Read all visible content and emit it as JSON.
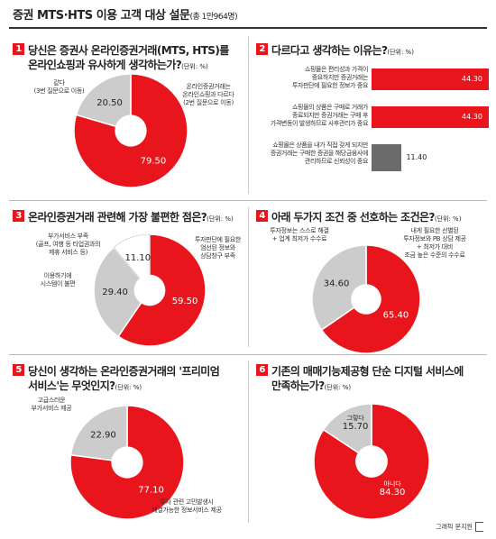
{
  "header": {
    "title": "증권 MTS·HTS 이용 고객 대상 설문",
    "subtitle": "(총 1만964명)"
  },
  "unit": "(단위: %)",
  "credit": "그래픽 문지원",
  "colors": {
    "red": "#e8161c",
    "gray": "#cccccc",
    "dark_gray": "#6b6b6b"
  },
  "chart_data": [
    {
      "id": "q1",
      "type": "pie",
      "number": "1",
      "title_line1": "당신은 증권사 온라인증권거래(MTS, HTS)를",
      "title_line2": "온라인쇼핑과 유사하게 생각하는가?",
      "slices": [
        {
          "label": "온라인증권거래는\n온라인쇼핑과 다르다\n(2번 질문으로 이동)",
          "value": 79.5,
          "display": "79.50",
          "color": "#e8161c"
        },
        {
          "label": "같다\n(3번 질문으로 이동)",
          "value": 20.5,
          "display": "20.50",
          "color": "#cccccc"
        }
      ]
    },
    {
      "id": "q2",
      "type": "bar",
      "number": "2",
      "title_line1": "다르다고 생각하는 이유는?",
      "title_line2": "",
      "bars": [
        {
          "label": "쇼핑몰은 편리성과 가격이\n중요하지만 증권거래는\n투자판단에 필요한 정보가 중요",
          "value": 44.3,
          "display": "44.30",
          "color": "#e8161c"
        },
        {
          "label": "쇼핑몰의 상품은 구매로 거래가\n종료되지만 증권거래는 구매 후\n가격변동이 발생하므로 사후관리가 중요",
          "value": 44.3,
          "display": "44.30",
          "color": "#e8161c"
        },
        {
          "label": "쇼핑몰은 상품을 내가 직접 갖게 되지만\n증권거래는 구매한 증권을 해당금융사에\n관리하므로 신뢰성이 중요",
          "value": 11.4,
          "display": "11.40",
          "color": "#6b6b6b"
        }
      ]
    },
    {
      "id": "q3",
      "type": "pie",
      "number": "3",
      "title_line1": "온라인증권거래 관련해 가장 불편한 점은?",
      "title_line2": "",
      "slices": [
        {
          "label": "투자판단에 필요한\n엄선된 정보와\n상담창구 부족",
          "value": 59.5,
          "display": "59.50",
          "color": "#e8161c"
        },
        {
          "label": "이용하기에\n시스템이 불편",
          "value": 29.4,
          "display": "29.40",
          "color": "#cccccc"
        },
        {
          "label": "부가서비스 부족\n(골프, 여행 등 타업권과의\n제휴 서비스 등)",
          "value": 11.1,
          "display": "11.10",
          "color": "#ffffff"
        }
      ]
    },
    {
      "id": "q4",
      "type": "pie",
      "number": "4",
      "title_line1": "아래 두가지 조건 중 선호하는 조건은?",
      "title_line2": "",
      "slices": [
        {
          "label": "내게 필요한 선별된\n투자정보와 PB 상담 제공\n+ 최저가 대비\n조금 높은 수준의 수수료",
          "value": 65.4,
          "display": "65.40",
          "color": "#e8161c"
        },
        {
          "label": "투자정보는 스스로 해결\n+ 업계 최저가 수수료",
          "value": 34.6,
          "display": "34.60",
          "color": "#cccccc"
        }
      ]
    },
    {
      "id": "q5",
      "type": "pie",
      "number": "5",
      "title_line1": "당신이 생각하는 온라인증권거래의 '프리미엄",
      "title_line2": "서비스'는 무엇인지?",
      "slices": [
        {
          "label": "투자 관련 고민발생시\n해결가능한 정보서비스 제공",
          "value": 77.1,
          "display": "77.10",
          "color": "#e8161c"
        },
        {
          "label": "고급스러운\n부가서비스 제공",
          "value": 22.9,
          "display": "22.90",
          "color": "#cccccc"
        }
      ]
    },
    {
      "id": "q6",
      "type": "pie",
      "number": "6",
      "title_line1": "기존의 매매기능제공형 단순 디지털 서비스에",
      "title_line2": "만족하는가?",
      "slices": [
        {
          "label": "아니다",
          "value": 84.3,
          "display": "84.30",
          "color": "#e8161c"
        },
        {
          "label": "그렇다",
          "value": 15.7,
          "display": "15.70",
          "color": "#cccccc"
        }
      ]
    }
  ]
}
